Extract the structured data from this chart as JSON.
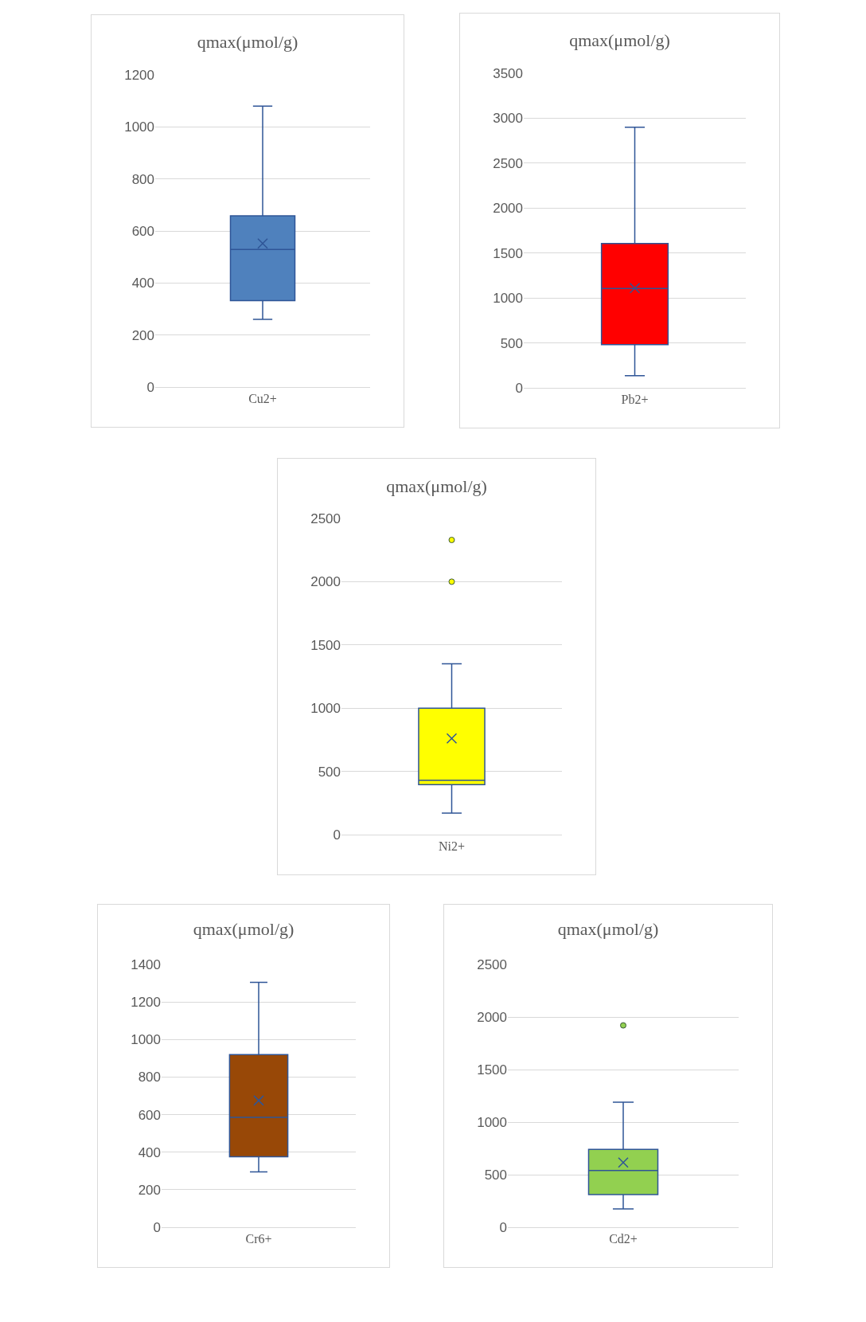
{
  "chart_data": [
    {
      "type": "box",
      "title": "qmax(μmol/g)",
      "categories": [
        "Cu2+"
      ],
      "color": "#4f81bd",
      "boxes": [
        {
          "low": 260,
          "q1": 332,
          "median": 529,
          "q3": 658,
          "high": 1080,
          "mean": 552
        }
      ],
      "ylim": [
        0,
        1200
      ],
      "yticks": [
        0,
        200,
        400,
        600,
        800,
        1000,
        1200
      ],
      "grid": "y"
    },
    {
      "type": "box",
      "title": "qmax(μmol/g)",
      "categories": [
        "Pb2+"
      ],
      "color": "#ff0000",
      "boxes": [
        {
          "low": 135,
          "q1": 480,
          "median": 1105,
          "q3": 1605,
          "high": 2900,
          "mean": 1110
        }
      ],
      "ylim": [
        0,
        3500
      ],
      "yticks": [
        0,
        500,
        1000,
        1500,
        2000,
        2500,
        3000,
        3500
      ],
      "grid": "y"
    },
    {
      "type": "box",
      "title": "qmax(μmol/g)",
      "categories": [
        "Ni2+"
      ],
      "color": "#ffff00",
      "boxes": [
        {
          "low": 170,
          "q1": 395,
          "median": 430,
          "q3": 1000,
          "high": 1350,
          "mean": 760,
          "outliers": [
            2000,
            2330
          ]
        }
      ],
      "ylim": [
        0,
        2500
      ],
      "yticks": [
        0,
        500,
        1000,
        1500,
        2000,
        2500
      ],
      "grid": "y"
    },
    {
      "type": "box",
      "title": "qmax(μmol/g)",
      "categories": [
        "Cr6+"
      ],
      "color": "#984807",
      "boxes": [
        {
          "low": 295,
          "q1": 375,
          "median": 585,
          "q3": 920,
          "high": 1305,
          "mean": 675
        }
      ],
      "ylim": [
        0,
        1400
      ],
      "yticks": [
        0,
        200,
        400,
        600,
        800,
        1000,
        1200,
        1400
      ],
      "grid": "y"
    },
    {
      "type": "box",
      "title": "qmax(μmol/g)",
      "categories": [
        "Cd2+"
      ],
      "color": "#92d050",
      "boxes": [
        {
          "low": 175,
          "q1": 310,
          "median": 540,
          "q3": 740,
          "high": 1190,
          "mean": 615,
          "outliers": [
            1920
          ]
        }
      ],
      "ylim": [
        0,
        2500
      ],
      "yticks": [
        0,
        500,
        1000,
        1500,
        2000,
        2500
      ],
      "grid": "y"
    }
  ]
}
